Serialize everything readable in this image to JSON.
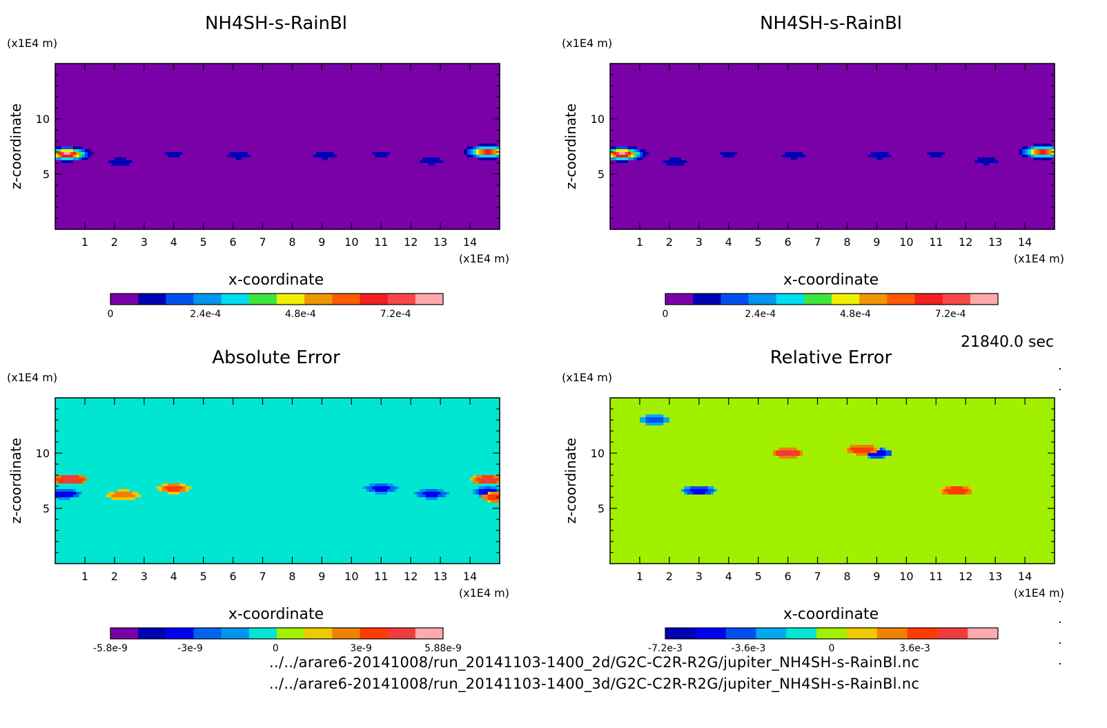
{
  "figure": {
    "time_label": "21840.0 sec",
    "file_paths": [
      "../../arare6-20141008/run_20141103-1400_2d/G2C-C2R-R2G/jupiter_NH4SH-s-RainBl.nc",
      "../../arare6-20141008/run_20141103-1400_3d/G2C-C2R-R2G/jupiter_NH4SH-s-RainBl.nc"
    ]
  },
  "chart_data": [
    {
      "type": "heatmap",
      "title": "NH4SH-s-RainBl",
      "xlabel": "x-coordinate",
      "ylabel": "z-coordinate",
      "x_unit": "(x1E4 m)",
      "y_unit": "(x1E4 m)",
      "xlim": [
        0,
        15
      ],
      "ylim": [
        0,
        15
      ],
      "x_ticks": [
        "1",
        "2",
        "3",
        "4",
        "5",
        "6",
        "7",
        "8",
        "9",
        "10",
        "11",
        "12",
        "13",
        "14"
      ],
      "y_ticks": [
        "5",
        "10"
      ],
      "background_value": 0,
      "features": [
        {
          "x": 0.4,
          "z": 6.8,
          "peak": 0.0008
        },
        {
          "x": 14.6,
          "z": 7.0,
          "peak": 0.0007
        },
        {
          "x": 2.2,
          "z": 6.1,
          "peak": 0.00012
        },
        {
          "x": 4.0,
          "z": 6.8,
          "peak": 0.0001
        },
        {
          "x": 6.2,
          "z": 6.7,
          "peak": 0.00012
        },
        {
          "x": 9.1,
          "z": 6.7,
          "peak": 0.00012
        },
        {
          "x": 11.0,
          "z": 6.8,
          "peak": 0.0001
        },
        {
          "x": 12.7,
          "z": 6.2,
          "peak": 0.00012
        }
      ],
      "colorbar": {
        "colors": [
          "#7a00a8",
          "#0000b4",
          "#0050f0",
          "#0096f0",
          "#00dcf0",
          "#3ce63c",
          "#f0f000",
          "#f09600",
          "#ff5a00",
          "#f01e1e",
          "#fa4646",
          "#ffaaaa"
        ],
        "ticks": [
          0,
          0.00024,
          0.00048,
          0.00072
        ],
        "tick_labels": [
          "0",
          "2.4e-4",
          "4.8e-4",
          "7.2e-4"
        ],
        "range": [
          0,
          0.00084
        ]
      }
    },
    {
      "type": "heatmap",
      "title": "NH4SH-s-RainBl",
      "xlabel": "x-coordinate",
      "ylabel": "z-coordinate",
      "x_unit": "(x1E4 m)",
      "y_unit": "(x1E4 m)",
      "xlim": [
        0,
        15
      ],
      "ylim": [
        0,
        15
      ],
      "x_ticks": [
        "1",
        "2",
        "3",
        "4",
        "5",
        "6",
        "7",
        "8",
        "9",
        "10",
        "11",
        "12",
        "13",
        "14"
      ],
      "y_ticks": [
        "5",
        "10"
      ],
      "background_value": 0,
      "features": [
        {
          "x": 0.4,
          "z": 6.8,
          "peak": 0.0008
        },
        {
          "x": 14.6,
          "z": 7.0,
          "peak": 0.0007
        },
        {
          "x": 2.2,
          "z": 6.1,
          "peak": 0.00012
        },
        {
          "x": 4.0,
          "z": 6.8,
          "peak": 0.0001
        },
        {
          "x": 6.2,
          "z": 6.7,
          "peak": 0.00012
        },
        {
          "x": 9.1,
          "z": 6.7,
          "peak": 0.00012
        },
        {
          "x": 11.0,
          "z": 6.8,
          "peak": 0.0001
        },
        {
          "x": 12.7,
          "z": 6.2,
          "peak": 0.00012
        }
      ],
      "colorbar": {
        "colors": [
          "#7a00a8",
          "#0000b4",
          "#0050f0",
          "#0096f0",
          "#00dcf0",
          "#3ce63c",
          "#f0f000",
          "#f09600",
          "#ff5a00",
          "#f01e1e",
          "#fa4646",
          "#ffaaaa"
        ],
        "ticks": [
          0,
          0.00024,
          0.00048,
          0.00072
        ],
        "tick_labels": [
          "0",
          "2.4e-4",
          "4.8e-4",
          "7.2e-4"
        ],
        "range": [
          0,
          0.00084
        ]
      }
    },
    {
      "type": "heatmap",
      "title": "Absolute Error",
      "xlabel": "x-coordinate",
      "ylabel": "z-coordinate",
      "x_unit": "(x1E4 m)",
      "y_unit": "(x1E4 m)",
      "xlim": [
        0,
        15
      ],
      "ylim": [
        0,
        15
      ],
      "x_ticks": [
        "1",
        "2",
        "3",
        "4",
        "5",
        "6",
        "7",
        "8",
        "9",
        "10",
        "11",
        "12",
        "13",
        "14"
      ],
      "y_ticks": [
        "5",
        "10"
      ],
      "background_value": 0,
      "noise_value": -5e-10,
      "noise_zmin": 5.5,
      "noise_zmax": 15,
      "features": [
        {
          "x": 0.5,
          "z": 7.6,
          "value": 4.5e-09
        },
        {
          "x": 0.3,
          "z": 6.3,
          "value": -3.5e-09
        },
        {
          "x": 14.6,
          "z": 7.6,
          "value": 4e-09
        },
        {
          "x": 14.6,
          "z": 6.5,
          "value": -3e-09
        },
        {
          "x": 14.9,
          "z": 6.0,
          "value": 3.5e-09
        },
        {
          "x": 2.3,
          "z": 6.2,
          "value": 2.5e-09
        },
        {
          "x": 4.0,
          "z": 6.8,
          "value": 3e-09
        },
        {
          "x": 11.0,
          "z": 6.8,
          "value": -3e-09
        },
        {
          "x": 12.7,
          "z": 6.3,
          "value": -3e-09
        }
      ],
      "colorbar": {
        "colors": [
          "#7a00a8",
          "#0000b4",
          "#0000f0",
          "#0064f0",
          "#0096f0",
          "#00e6d2",
          "#a0f000",
          "#f0c800",
          "#f08200",
          "#ff3c00",
          "#f03c3c",
          "#ffaaaa"
        ],
        "ticks": [
          -5.8e-09,
          -3e-09,
          0,
          3e-09,
          5.88e-09
        ],
        "tick_labels": [
          "-5.8e-9",
          "-3e-9",
          "0",
          "3e-9",
          "5.88e-9"
        ],
        "range": [
          -5.8e-09,
          5.88e-09
        ]
      }
    },
    {
      "type": "heatmap",
      "title": "Relative Error",
      "xlabel": "x-coordinate",
      "ylabel": "z-coordinate",
      "x_unit": "(x1E4 m)",
      "y_unit": "(x1E4 m)",
      "xlim": [
        0,
        15
      ],
      "ylim": [
        0,
        15
      ],
      "x_ticks": [
        "1",
        "2",
        "3",
        "4",
        "5",
        "6",
        "7",
        "8",
        "9",
        "10",
        "11",
        "12",
        "13",
        "14"
      ],
      "y_ticks": [
        "5",
        "10"
      ],
      "background_value": 0.0003,
      "noise_value": -0.0003,
      "noise_zmin": 5.5,
      "noise_zmax": 15,
      "features": [
        {
          "x": 6.0,
          "z": 10.0,
          "value": 0.005
        },
        {
          "x": 9.0,
          "z": 10.0,
          "value": -0.0055
        },
        {
          "x": 3.0,
          "z": 6.6,
          "value": -0.005
        },
        {
          "x": 8.5,
          "z": 10.3,
          "value": 0.004
        },
        {
          "x": 11.7,
          "z": 6.6,
          "value": 0.004
        },
        {
          "x": 1.5,
          "z": 13.0,
          "value": -0.004
        }
      ],
      "colorbar": {
        "colors": [
          "#0000b4",
          "#0000f0",
          "#0050f0",
          "#00aaf0",
          "#00e6d2",
          "#a0f000",
          "#f0c800",
          "#f08200",
          "#ff3c00",
          "#f03c3c",
          "#ffaaaa"
        ],
        "ticks": [
          -0.0072,
          -0.0036,
          0,
          0.0036
        ],
        "tick_labels": [
          "-7.2e-3",
          "-3.6e-3",
          "0",
          "3.6e-3"
        ],
        "range": [
          -0.0072,
          0.0072
        ]
      }
    }
  ]
}
